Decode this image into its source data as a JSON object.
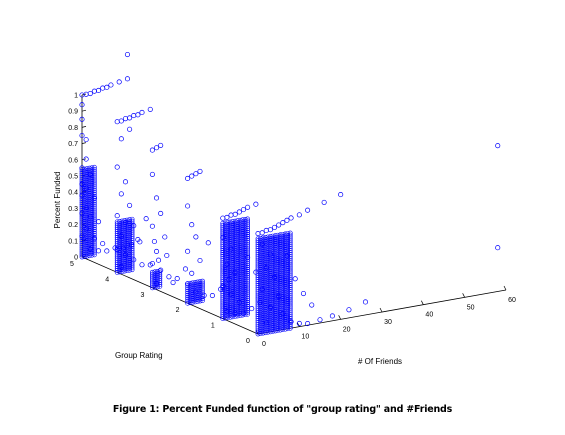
{
  "caption": "Figure 1: Percent Funded function of \"group rating\" and #Friends",
  "chart_data": {
    "type": "scatter",
    "projection": "3d",
    "marker": "open-circle",
    "marker_color": "#0000ff",
    "axes_color": "#000000",
    "grid": false,
    "x_axis": {
      "label": "# Of Friends",
      "lim": [
        0,
        60
      ],
      "ticks": [
        "0",
        "10",
        "20",
        "30",
        "40",
        "50",
        "60"
      ]
    },
    "y_axis": {
      "label": "Group Rating",
      "lim": [
        0,
        5
      ],
      "ticks": [
        "0",
        "1",
        "2",
        "3",
        "4",
        "5"
      ]
    },
    "z_axis": {
      "label": "Percent Funded",
      "lim": [
        0,
        1
      ],
      "ticks": [
        "0",
        "0.1",
        "0.2",
        "0.3",
        "0.4",
        "0.5",
        "0.6",
        "0.7",
        "0.8",
        "0.9",
        "1"
      ]
    },
    "points": [
      [
        0,
        5,
        1.0
      ],
      [
        1,
        5,
        1.0
      ],
      [
        2,
        5,
        1.0
      ],
      [
        3,
        5,
        1.01
      ],
      [
        4,
        5,
        1.01
      ],
      [
        5,
        5,
        1.02
      ],
      [
        6,
        5,
        1.02
      ],
      [
        7,
        5,
        1.03
      ],
      [
        9,
        5,
        1.04
      ],
      [
        11,
        5,
        1.05
      ],
      [
        0,
        5,
        0.94
      ],
      [
        0,
        5,
        0.85
      ],
      [
        0,
        5,
        0.75
      ],
      [
        1,
        5,
        0.72
      ],
      [
        1,
        5,
        0.6
      ],
      [
        0,
        5,
        0.55
      ],
      [
        2,
        5,
        0.5
      ],
      [
        0,
        5,
        0.45
      ],
      [
        1,
        5,
        0.42
      ],
      [
        0,
        5,
        0.38
      ],
      [
        3,
        5,
        0.35
      ],
      [
        1,
        5,
        0.3
      ],
      [
        0,
        5,
        0.27
      ],
      [
        2,
        5,
        0.24
      ],
      [
        4,
        5,
        0.2
      ],
      [
        1,
        5,
        0.17
      ],
      [
        0,
        5,
        0.13
      ],
      [
        3,
        5,
        0.1
      ],
      [
        5,
        5,
        0.06
      ],
      [
        2,
        5,
        0.04
      ],
      [
        4,
        5,
        0.02
      ],
      [
        6,
        5,
        0.01
      ],
      [
        8,
        5,
        0.02
      ],
      [
        10,
        5,
        0.01
      ],
      [
        12,
        5,
        0.02
      ],
      [
        14,
        5,
        0.03
      ],
      [
        0,
        4,
        0.93
      ],
      [
        1,
        4,
        0.93
      ],
      [
        2,
        4,
        0.94
      ],
      [
        3,
        4,
        0.94
      ],
      [
        4,
        4,
        0.95
      ],
      [
        5,
        4,
        0.95
      ],
      [
        6,
        4,
        0.96
      ],
      [
        8,
        4,
        0.97
      ],
      [
        3,
        4,
        0.87
      ],
      [
        1,
        4,
        0.82
      ],
      [
        0,
        4,
        0.65
      ],
      [
        2,
        4,
        0.55
      ],
      [
        1,
        4,
        0.48
      ],
      [
        3,
        4,
        0.4
      ],
      [
        0,
        4,
        0.35
      ],
      [
        2,
        4,
        0.3
      ],
      [
        4,
        4,
        0.27
      ],
      [
        1,
        4,
        0.22
      ],
      [
        5,
        4,
        0.18
      ],
      [
        0,
        4,
        0.14
      ],
      [
        2,
        4,
        0.1
      ],
      [
        4,
        4,
        0.06
      ],
      [
        1,
        4,
        0.03
      ],
      [
        6,
        4,
        0.02
      ],
      [
        8,
        4,
        0.01
      ],
      [
        10,
        4,
        0.03
      ],
      [
        12,
        4,
        0.05
      ],
      [
        7,
        4,
        0.3
      ],
      [
        9,
        4,
        0.15
      ],
      [
        0,
        3,
        0.85
      ],
      [
        1,
        3,
        0.86
      ],
      [
        2,
        3,
        0.87
      ],
      [
        0,
        3,
        0.7
      ],
      [
        1,
        3,
        0.55
      ],
      [
        2,
        3,
        0.45
      ],
      [
        0,
        3,
        0.38
      ],
      [
        3,
        3,
        0.3
      ],
      [
        1,
        3,
        0.22
      ],
      [
        0,
        3,
        0.15
      ],
      [
        2,
        3,
        0.1
      ],
      [
        4,
        3,
        0.05
      ],
      [
        1,
        3,
        0.02
      ],
      [
        5,
        3,
        0.01
      ],
      [
        6,
        3,
        0.03
      ],
      [
        8,
        3,
        0.08
      ],
      [
        0,
        2,
        0.77
      ],
      [
        1,
        2,
        0.78
      ],
      [
        2,
        2,
        0.79
      ],
      [
        3,
        2,
        0.8
      ],
      [
        0,
        2,
        0.6
      ],
      [
        1,
        2,
        0.48
      ],
      [
        2,
        2,
        0.4
      ],
      [
        0,
        2,
        0.32
      ],
      [
        3,
        2,
        0.25
      ],
      [
        1,
        2,
        0.18
      ],
      [
        0,
        2,
        0.12
      ],
      [
        2,
        2,
        0.06
      ],
      [
        4,
        2,
        0.03
      ],
      [
        6,
        2,
        0.02
      ],
      [
        8,
        2,
        0.05
      ],
      [
        10,
        2,
        0.1
      ],
      [
        5,
        2,
        0.35
      ],
      [
        0,
        1,
        0.62
      ],
      [
        1,
        1,
        0.62
      ],
      [
        2,
        1,
        0.63
      ],
      [
        3,
        1,
        0.63
      ],
      [
        4,
        1,
        0.64
      ],
      [
        5,
        1,
        0.65
      ],
      [
        6,
        1,
        0.66
      ],
      [
        8,
        1,
        0.67
      ],
      [
        0,
        1,
        0.5
      ],
      [
        2,
        1,
        0.42
      ],
      [
        1,
        1,
        0.33
      ],
      [
        3,
        1,
        0.27
      ],
      [
        0,
        1,
        0.2
      ],
      [
        2,
        1,
        0.14
      ],
      [
        4,
        1,
        0.08
      ],
      [
        1,
        1,
        0.04
      ],
      [
        3,
        1,
        0.02
      ],
      [
        5,
        1,
        0.01
      ],
      [
        7,
        1,
        0.03
      ],
      [
        9,
        1,
        0.06
      ],
      [
        6,
        1,
        0.35
      ],
      [
        8,
        1,
        0.25
      ],
      [
        0,
        0,
        0.62
      ],
      [
        1,
        0,
        0.62
      ],
      [
        2,
        0,
        0.63
      ],
      [
        3,
        0,
        0.63
      ],
      [
        4,
        0,
        0.64
      ],
      [
        5,
        0,
        0.65
      ],
      [
        6,
        0,
        0.66
      ],
      [
        7,
        0,
        0.67
      ],
      [
        8,
        0,
        0.68
      ],
      [
        10,
        0,
        0.69
      ],
      [
        12,
        0,
        0.71
      ],
      [
        16,
        0,
        0.74
      ],
      [
        20,
        0,
        0.77
      ],
      [
        1,
        0,
        0.55
      ],
      [
        3,
        0,
        0.48
      ],
      [
        2,
        0,
        0.4
      ],
      [
        4,
        0,
        0.33
      ],
      [
        1,
        0,
        0.27
      ],
      [
        5,
        0,
        0.21
      ],
      [
        3,
        0,
        0.15
      ],
      [
        6,
        0,
        0.1
      ],
      [
        2,
        0,
        0.06
      ],
      [
        8,
        0,
        0.04
      ],
      [
        10,
        0,
        0.02
      ],
      [
        12,
        0,
        0.01
      ],
      [
        15,
        0,
        0.02
      ],
      [
        18,
        0,
        0.03
      ],
      [
        22,
        0,
        0.05
      ],
      [
        26,
        0,
        0.08
      ],
      [
        9,
        0,
        0.3
      ],
      [
        11,
        0,
        0.2
      ],
      [
        13,
        0,
        0.12
      ],
      [
        7,
        0,
        0.45
      ],
      [
        58,
        0,
        0.9
      ],
      [
        58,
        0,
        0.27
      ],
      [
        11,
        5,
        1.2
      ]
    ]
  }
}
